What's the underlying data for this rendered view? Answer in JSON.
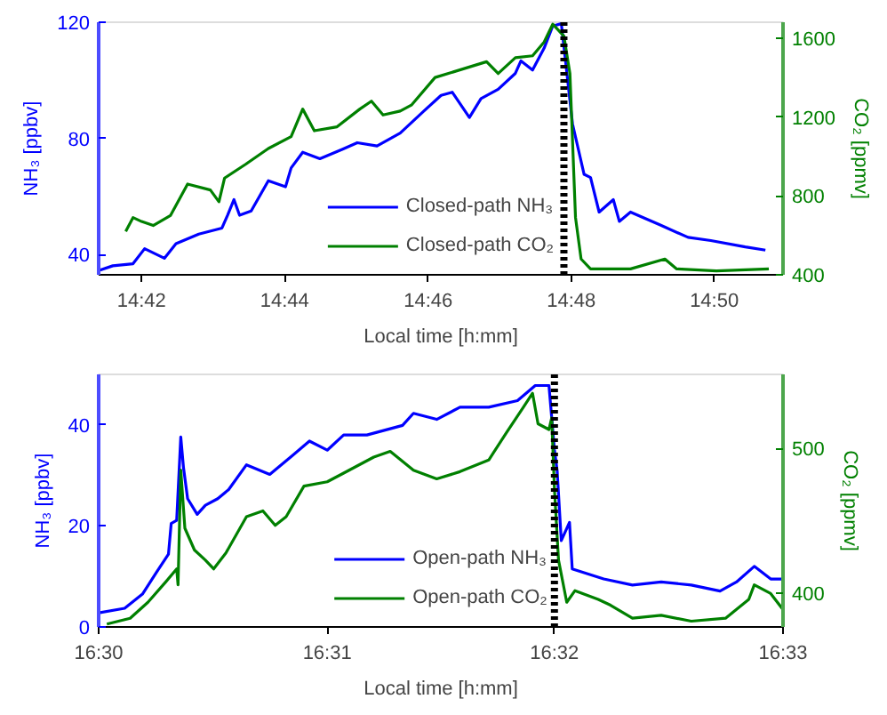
{
  "chart_data": [
    {
      "type": "line",
      "xlabel": "Local time [h:mm]",
      "ylabel": "NH₃ [ppbv]",
      "y2label": "CO₂ [ppmv]",
      "xlim": [
        14.69,
        14.8493
      ],
      "xticks": [
        {
          "value": 14.7,
          "label": "14:42"
        },
        {
          "value": 14.7333,
          "label": "14:44"
        },
        {
          "value": 14.7667,
          "label": "14:46"
        },
        {
          "value": 14.8,
          "label": "14:48"
        },
        {
          "value": 14.8333,
          "label": "14:50"
        }
      ],
      "ylim": [
        33,
        120
      ],
      "yticks": [
        40,
        80,
        120
      ],
      "y2lim": [
        400,
        1680
      ],
      "y2ticks": [
        400,
        800,
        1200,
        1600
      ],
      "legend": "bottom",
      "grid": false,
      "ref_lines": [
        {
          "axis": "x",
          "value": 14.7983,
          "color": "#000000",
          "line_style": "dotted"
        }
      ],
      "series": [
        {
          "name": "Closed-path NH₃",
          "color": "#0000ff",
          "x": [
            14.6903,
            14.6933,
            14.698,
            14.7007,
            14.7053,
            14.708,
            14.7133,
            14.7187,
            14.72,
            14.7215,
            14.7228,
            14.7255,
            14.7295,
            14.7335,
            14.7348,
            14.7375,
            14.7415,
            14.7468,
            14.7502,
            14.7548,
            14.7602,
            14.7657,
            14.7697,
            14.7723,
            14.7763,
            14.779,
            14.783,
            14.787,
            14.7883,
            14.791,
            14.7937,
            14.7957,
            14.7977,
            14.799,
            14.8003,
            14.803,
            14.8045,
            14.8065,
            14.8098,
            14.8112,
            14.8138,
            14.8205,
            14.8272,
            14.8325,
            14.8405,
            14.8452
          ],
          "values": [
            34.6,
            36.1,
            36.8,
            42.0,
            38.7,
            43.7,
            47.0,
            49.1,
            53.5,
            58.9,
            53.5,
            55.0,
            65.4,
            63.3,
            69.8,
            75.2,
            73.0,
            76.3,
            78.5,
            77.4,
            81.8,
            89.4,
            94.8,
            95.9,
            87.2,
            93.7,
            96.9,
            102.4,
            106.7,
            103.5,
            111.1,
            118.7,
            119.5,
            102.4,
            85.0,
            67.6,
            66.5,
            54.6,
            58.9,
            51.4,
            54.6,
            50.3,
            45.9,
            44.8,
            42.6,
            41.5
          ]
        },
        {
          "name": "Closed-path CO₂",
          "color": "#008000",
          "axis": "y2",
          "x": [
            14.6963,
            14.698,
            14.7,
            14.7027,
            14.7067,
            14.7107,
            14.716,
            14.718,
            14.7193,
            14.7242,
            14.7295,
            14.7348,
            14.7375,
            14.7402,
            14.7455,
            14.7508,
            14.7535,
            14.7562,
            14.7602,
            14.7628,
            14.7683,
            14.7803,
            14.783,
            14.787,
            14.791,
            14.7937,
            14.7957,
            14.797,
            14.7983,
            14.7997,
            14.801,
            14.8023,
            14.8045,
            14.8138,
            14.8218,
            14.8245,
            14.8338,
            14.846
          ],
          "values": [
            620,
            690,
            670,
            650,
            700,
            860,
            830,
            770,
            890,
            960,
            1040,
            1100,
            1240,
            1130,
            1150,
            1240,
            1280,
            1210,
            1230,
            1260,
            1400,
            1480,
            1420,
            1500,
            1510,
            1580,
            1670,
            1640,
            1610,
            1420,
            690,
            480,
            430,
            430,
            480,
            430,
            420,
            430
          ]
        }
      ]
    },
    {
      "type": "line",
      "xlabel": "Local time [h:mm]",
      "ylabel": "NH₃ [ppbv]",
      "y2label": "CO₂ [ppmv]",
      "xlim": [
        16.5,
        16.55
      ],
      "xticks": [
        {
          "value": 16.5,
          "label": "16:30"
        },
        {
          "value": 16.5167,
          "label": "16:31"
        },
        {
          "value": 16.5333,
          "label": "16:32"
        },
        {
          "value": 16.55,
          "label": "16:33"
        }
      ],
      "ylim": [
        0,
        50
      ],
      "yticks": [
        0,
        20,
        40
      ],
      "y2lim": [
        377,
        551
      ],
      "y2ticks": [
        400,
        500
      ],
      "legend": "bottom",
      "grid": false,
      "ref_lines": [
        {
          "axis": "x",
          "value": 16.5333,
          "color": "#000000",
          "line_style": "dotted"
        }
      ],
      "series": [
        {
          "name": "Open-path NH₃",
          "color": "#0000ff",
          "x": [
            16.5,
            16.5019,
            16.5032,
            16.5042,
            16.5051,
            16.5053,
            16.5057,
            16.506,
            16.5062,
            16.5065,
            16.5072,
            16.5078,
            16.5087,
            16.5095,
            16.5108,
            16.5125,
            16.5141,
            16.5154,
            16.5167,
            16.5179,
            16.5196,
            16.5222,
            16.523,
            16.5247,
            16.5264,
            16.5285,
            16.5306,
            16.5319,
            16.5329,
            16.5333,
            16.5335,
            16.5338,
            16.5344,
            16.5346,
            16.5369,
            16.539,
            16.5411,
            16.5433,
            16.5454,
            16.5466,
            16.5479,
            16.5491,
            16.55
          ],
          "values": [
            2.8,
            3.7,
            6.5,
            10.7,
            14.4,
            20.5,
            21.1,
            37.6,
            31.5,
            25.4,
            22.3,
            24.1,
            25.4,
            27.2,
            32.1,
            30.2,
            33.8,
            36.8,
            35.0,
            38.0,
            38.0,
            39.9,
            42.3,
            41.1,
            43.5,
            43.5,
            44.8,
            47.8,
            47.8,
            35.1,
            30.9,
            17.1,
            20.7,
            11.5,
            9.5,
            8.3,
            8.9,
            8.3,
            7.1,
            8.9,
            12.0,
            9.5,
            9.5
          ]
        },
        {
          "name": "Open-path CO₂",
          "color": "#008000",
          "axis": "y2",
          "x": [
            16.5006,
            16.5023,
            16.5036,
            16.5049,
            16.5057,
            16.5058,
            16.506,
            16.5063,
            16.507,
            16.5078,
            16.5084,
            16.5093,
            16.5108,
            16.512,
            16.5129,
            16.5137,
            16.515,
            16.5167,
            16.5179,
            16.5201,
            16.5213,
            16.523,
            16.5247,
            16.5264,
            16.5285,
            16.5298,
            16.531,
            16.5317,
            16.5321,
            16.5329,
            16.5331,
            16.5333,
            16.5336,
            16.5342,
            16.5348,
            16.5365,
            16.5374,
            16.539,
            16.5411,
            16.5433,
            16.5458,
            16.5475,
            16.5479,
            16.5491,
            16.55
          ],
          "values": [
            379,
            383,
            394,
            408,
            417,
            406,
            485,
            445,
            430,
            423,
            417,
            428,
            453,
            457,
            447,
            453,
            474,
            477,
            483,
            494,
            498,
            485,
            479,
            484,
            492,
            511,
            528,
            538,
            517,
            513,
            521,
            472,
            423,
            394,
            402,
            396,
            392,
            383,
            385,
            381,
            383,
            396,
            406,
            400,
            389
          ]
        }
      ]
    }
  ]
}
